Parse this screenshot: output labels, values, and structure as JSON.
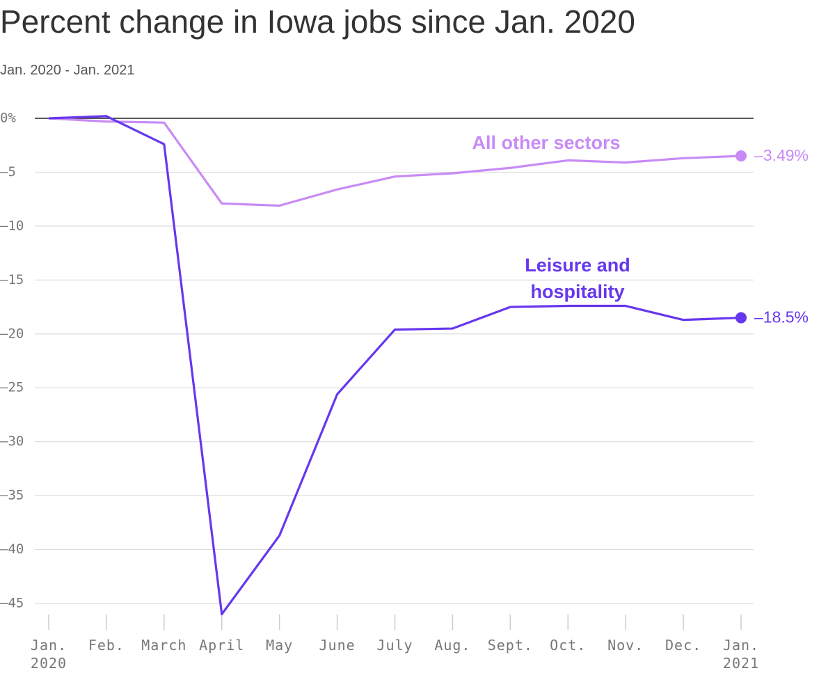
{
  "chart_data": {
    "type": "line",
    "title": "Percent change in Iowa jobs since Jan. 2020",
    "subtitle": "Jan. 2020 - Jan. 2021",
    "categories": [
      "Jan.\n2020",
      "Feb.",
      "March",
      "April",
      "May",
      "June",
      "July",
      "Aug.",
      "Sept.",
      "Oct.",
      "Nov.",
      "Dec.",
      "Jan.\n2021"
    ],
    "series": [
      {
        "name": "All other sectors",
        "color": "#c88bf6",
        "values": [
          0,
          -0.3,
          -0.4,
          -7.9,
          -8.1,
          -6.6,
          -5.4,
          -5.1,
          -4.6,
          -3.9,
          -4.1,
          -3.7,
          -3.49
        ],
        "value_labels": [
          null,
          null,
          null,
          null,
          null,
          null,
          null,
          null,
          null,
          null,
          null,
          null,
          "–3.49%"
        ]
      },
      {
        "name": "Leisure and hospitality",
        "color": "#6637ee",
        "values": [
          0,
          0.2,
          -2.4,
          -46.0,
          -38.7,
          -25.6,
          -19.6,
          -19.5,
          -17.5,
          -17.4,
          -17.4,
          -18.7,
          -18.5
        ],
        "value_labels": [
          null,
          null,
          null,
          null,
          null,
          null,
          null,
          null,
          null,
          null,
          null,
          null,
          "–18.5%"
        ]
      }
    ],
    "ylim": [
      -47,
      0
    ],
    "yticks": [
      {
        "value": 0,
        "label": "0%"
      },
      {
        "value": -5,
        "label": "–5"
      },
      {
        "value": -10,
        "label": "–10"
      },
      {
        "value": -15,
        "label": "–15"
      },
      {
        "value": -20,
        "label": "–20"
      },
      {
        "value": -25,
        "label": "–25"
      },
      {
        "value": -30,
        "label": "–30"
      },
      {
        "value": -35,
        "label": "–35"
      },
      {
        "value": -40,
        "label": "–40"
      },
      {
        "value": -45,
        "label": "–45"
      }
    ],
    "grid": true
  }
}
